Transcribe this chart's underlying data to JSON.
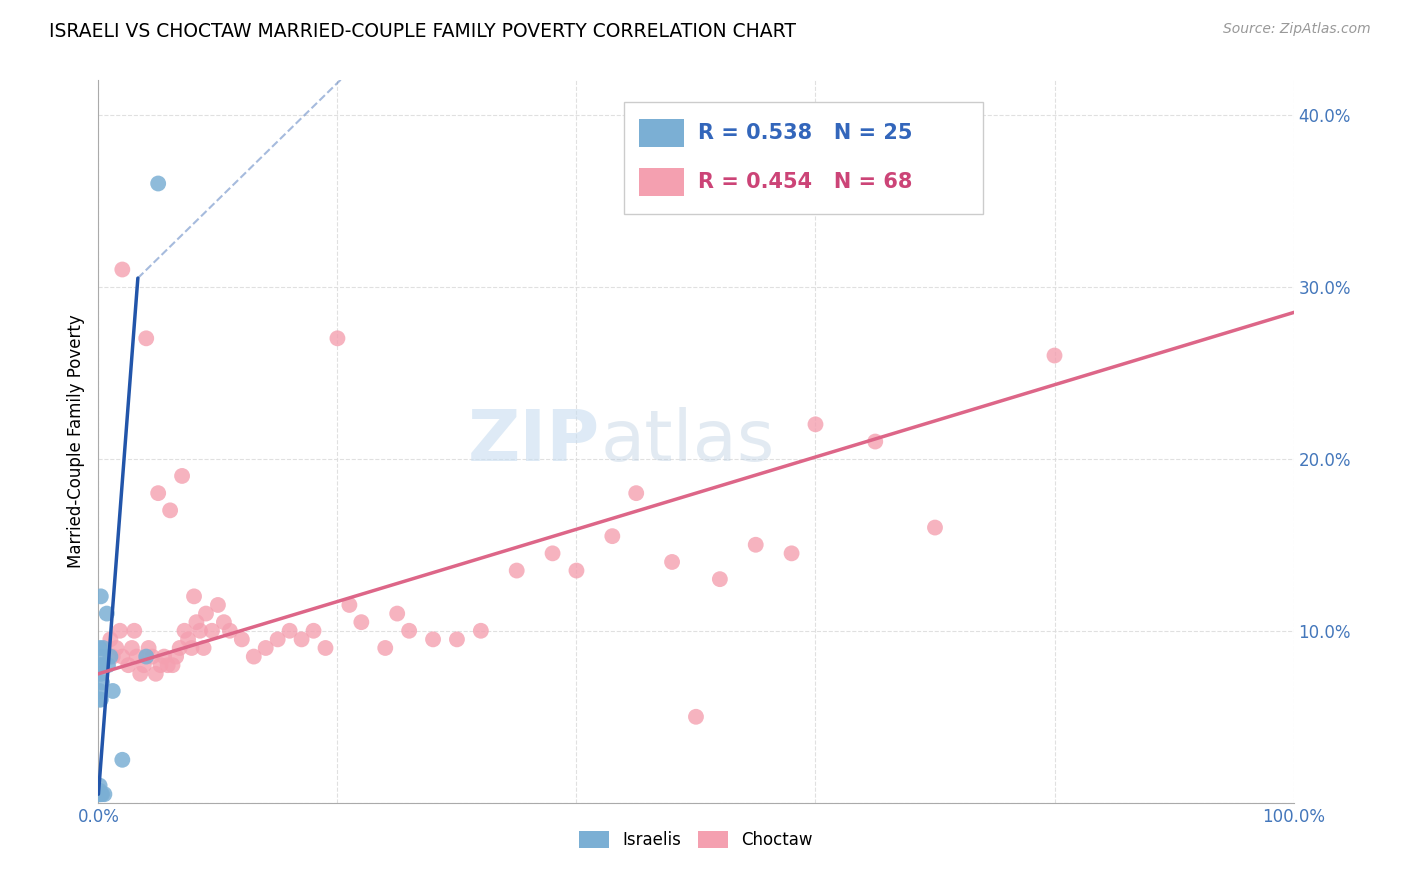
{
  "title": "ISRAELI VS CHOCTAW MARRIED-COUPLE FAMILY POVERTY CORRELATION CHART",
  "source": "Source: ZipAtlas.com",
  "ylabel": "Married-Couple Family Poverty",
  "xlim": [
    0,
    1.0
  ],
  "ylim": [
    0,
    0.42
  ],
  "ytick_vals": [
    0.0,
    0.1,
    0.2,
    0.3,
    0.4
  ],
  "ytick_labels": [
    "",
    "10.0%",
    "20.0%",
    "30.0%",
    "40.0%"
  ],
  "xtick_vals": [
    0.0,
    0.2,
    0.4,
    0.6,
    0.8,
    1.0
  ],
  "xtick_labels": [
    "0.0%",
    "",
    "",
    "",
    "",
    "100.0%"
  ],
  "israeli_color": "#7bafd4",
  "choctaw_color": "#f4a0b0",
  "israeli_line_color": "#2255aa",
  "choctaw_line_color": "#dd6688",
  "legend_R_israeli": "0.538",
  "legend_N_israeli": "25",
  "legend_R_choctaw": "0.454",
  "legend_N_choctaw": "68",
  "israeli_x": [
    0.001,
    0.001,
    0.001,
    0.001,
    0.001,
    0.001,
    0.001,
    0.001,
    0.002,
    0.002,
    0.002,
    0.002,
    0.002,
    0.003,
    0.003,
    0.003,
    0.004,
    0.005,
    0.007,
    0.008,
    0.01,
    0.012,
    0.02,
    0.04,
    0.05
  ],
  "israeli_y": [
    0.005,
    0.005,
    0.007,
    0.01,
    0.06,
    0.065,
    0.08,
    0.09,
    0.005,
    0.06,
    0.075,
    0.085,
    0.12,
    0.005,
    0.07,
    0.08,
    0.09,
    0.005,
    0.11,
    0.08,
    0.085,
    0.065,
    0.025,
    0.085,
    0.36
  ],
  "choctaw_x": [
    0.01,
    0.012,
    0.015,
    0.018,
    0.02,
    0.02,
    0.025,
    0.028,
    0.03,
    0.032,
    0.035,
    0.038,
    0.04,
    0.042,
    0.045,
    0.048,
    0.05,
    0.052,
    0.055,
    0.058,
    0.06,
    0.062,
    0.065,
    0.068,
    0.07,
    0.072,
    0.075,
    0.078,
    0.08,
    0.082,
    0.085,
    0.088,
    0.09,
    0.095,
    0.1,
    0.105,
    0.11,
    0.12,
    0.13,
    0.14,
    0.15,
    0.16,
    0.17,
    0.18,
    0.19,
    0.2,
    0.21,
    0.22,
    0.24,
    0.25,
    0.26,
    0.28,
    0.3,
    0.32,
    0.35,
    0.38,
    0.4,
    0.43,
    0.45,
    0.48,
    0.5,
    0.52,
    0.55,
    0.58,
    0.6,
    0.65,
    0.7,
    0.8
  ],
  "choctaw_y": [
    0.095,
    0.085,
    0.09,
    0.1,
    0.31,
    0.085,
    0.08,
    0.09,
    0.1,
    0.085,
    0.075,
    0.08,
    0.27,
    0.09,
    0.085,
    0.075,
    0.18,
    0.08,
    0.085,
    0.08,
    0.17,
    0.08,
    0.085,
    0.09,
    0.19,
    0.1,
    0.095,
    0.09,
    0.12,
    0.105,
    0.1,
    0.09,
    0.11,
    0.1,
    0.115,
    0.105,
    0.1,
    0.095,
    0.085,
    0.09,
    0.095,
    0.1,
    0.095,
    0.1,
    0.09,
    0.27,
    0.115,
    0.105,
    0.09,
    0.11,
    0.1,
    0.095,
    0.095,
    0.1,
    0.135,
    0.145,
    0.135,
    0.155,
    0.18,
    0.14,
    0.05,
    0.13,
    0.15,
    0.145,
    0.22,
    0.21,
    0.16,
    0.26
  ],
  "bg_color": "#ffffff",
  "grid_color": "#dddddd",
  "watermark_zip_color": "#c8ddf0",
  "watermark_atlas_color": "#b8cce0"
}
